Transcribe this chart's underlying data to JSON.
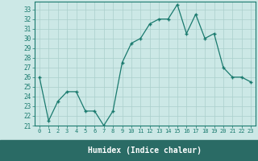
{
  "x": [
    0,
    1,
    2,
    3,
    4,
    5,
    6,
    7,
    8,
    9,
    10,
    11,
    12,
    13,
    14,
    15,
    16,
    17,
    18,
    19,
    20,
    21,
    22,
    23
  ],
  "y": [
    26,
    21.5,
    23.5,
    24.5,
    24.5,
    22.5,
    22.5,
    21,
    22.5,
    27.5,
    29.5,
    30,
    31.5,
    32,
    32,
    33.5,
    30.5,
    32.5,
    30,
    30.5,
    27,
    26,
    26,
    25.5
  ],
  "xlabel": "Humidex (Indice chaleur)",
  "ylim": [
    21,
    33.5
  ],
  "xlim": [
    -0.5,
    23.5
  ],
  "yticks": [
    21,
    22,
    23,
    24,
    25,
    26,
    27,
    28,
    29,
    30,
    31,
    32,
    33
  ],
  "xticks": [
    0,
    1,
    2,
    3,
    4,
    5,
    6,
    7,
    8,
    9,
    10,
    11,
    12,
    13,
    14,
    15,
    16,
    17,
    18,
    19,
    20,
    21,
    22,
    23
  ],
  "line_color": "#1a7a6e",
  "marker": "+",
  "bg_color": "#cce8e6",
  "grid_color": "#aacfcc",
  "bottom_bar_color": "#2a6b65"
}
